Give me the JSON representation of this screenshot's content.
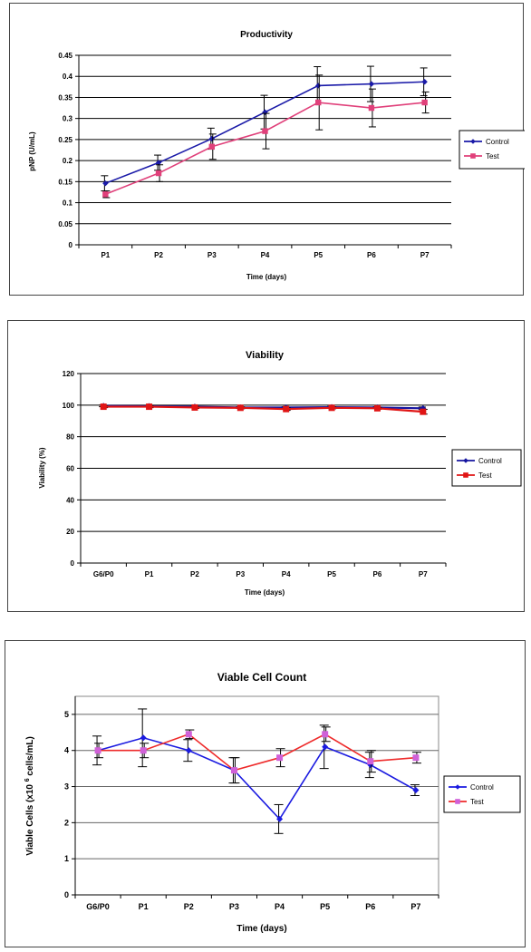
{
  "chart_data": [
    {
      "type": "line",
      "title": "Productivity",
      "xlabel": "Time (days)",
      "ylabel": "pNP (U/mL)",
      "categories": [
        "P1",
        "P2",
        "P3",
        "P4",
        "P5",
        "P6",
        "P7"
      ],
      "ylim": [
        0,
        0.45
      ],
      "yticks": [
        "0",
        "0.05",
        "0.1",
        "0.15",
        "0.2",
        "0.25",
        "0.3",
        "0.35",
        "0.4",
        "0.45"
      ],
      "grid": true,
      "legend_position": "right",
      "series": [
        {
          "name": "Control",
          "color": "#1a1aa8",
          "marker": "diamond",
          "values": [
            0.146,
            0.195,
            0.252,
            0.315,
            0.378,
            0.382,
            0.387
          ],
          "errors": [
            0.018,
            0.018,
            0.025,
            0.04,
            0.045,
            0.042,
            0.033
          ]
        },
        {
          "name": "Test",
          "color": "#e0407a",
          "marker": "square",
          "values": [
            0.12,
            0.17,
            0.233,
            0.27,
            0.338,
            0.325,
            0.338
          ],
          "errors": [
            0.008,
            0.02,
            0.03,
            0.042,
            0.065,
            0.045,
            0.025
          ]
        }
      ]
    },
    {
      "type": "line",
      "title": "Viability",
      "xlabel": "Time (days)",
      "ylabel": "Viability (%)",
      "categories": [
        "G6/P0",
        "P1",
        "P2",
        "P3",
        "P4",
        "P5",
        "P6",
        "P7"
      ],
      "ylim": [
        0,
        120
      ],
      "yticks": [
        "0",
        "20",
        "40",
        "60",
        "80",
        "100",
        "120"
      ],
      "grid": true,
      "legend_position": "right",
      "series": [
        {
          "name": "Control",
          "color": "#1414a0",
          "marker": "diamond",
          "values": [
            99.5,
            99.3,
            99.0,
            98.5,
            98.5,
            98.7,
            98.5,
            98.0
          ],
          "errors": [
            0.5,
            0.5,
            0.5,
            0.5,
            0.5,
            0.5,
            0.5,
            0.8
          ]
        },
        {
          "name": "Test",
          "color": "#e01414",
          "marker": "square",
          "values": [
            99.0,
            99.0,
            98.5,
            98.3,
            97.5,
            98.3,
            98.0,
            95.8
          ],
          "errors": [
            0.6,
            0.6,
            0.6,
            0.6,
            0.8,
            0.6,
            0.6,
            1.5
          ]
        }
      ]
    },
    {
      "type": "line",
      "title": "Viable Cell Count",
      "xlabel": "Time (days)",
      "ylabel": "Viable Cells (x10 6 cells/mL)",
      "ylabel_parts": [
        "Viable Cells (x10 ",
        "6",
        " cells/mL)"
      ],
      "categories": [
        "G6/P0",
        "P1",
        "P2",
        "P3",
        "P4",
        "P5",
        "P6",
        "P7"
      ],
      "ylim": [
        0,
        5.5
      ],
      "yticks": [
        "0",
        "1",
        "2",
        "3",
        "4",
        "5"
      ],
      "grid": true,
      "legend_position": "right",
      "series": [
        {
          "name": "Control",
          "color": "#1a1ae0",
          "marker": "diamond",
          "values": [
            4.0,
            4.35,
            4.0,
            3.45,
            2.1,
            4.1,
            3.6,
            2.9
          ],
          "errors": [
            0.4,
            0.8,
            0.3,
            0.35,
            0.4,
            0.6,
            0.35,
            0.15
          ]
        },
        {
          "name": "Test",
          "color": "#ee2a2a",
          "marker": "square",
          "markerColor": "#d060d8",
          "values": [
            4.0,
            4.0,
            4.45,
            3.45,
            3.8,
            4.45,
            3.7,
            3.8
          ],
          "errors": [
            0.2,
            0.2,
            0.12,
            0.35,
            0.25,
            0.2,
            0.3,
            0.15
          ]
        }
      ]
    }
  ]
}
